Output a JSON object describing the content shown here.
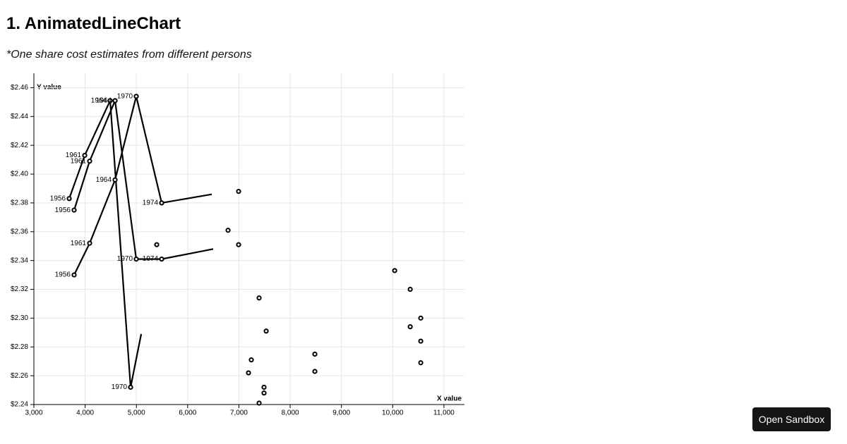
{
  "page": {
    "heading": "1. AnimatedLineChart",
    "note": "*One share cost estimates from different persons",
    "button": "Open Sandbox"
  },
  "chart_data": {
    "type": "line",
    "x_label": "X value",
    "y_label": "Y value",
    "xlim": [
      3000,
      11400
    ],
    "ylim": [
      2.24,
      2.47
    ],
    "xticks": [
      {
        "value": 3000,
        "label": "3,000"
      },
      {
        "value": 4000,
        "label": "4,000"
      },
      {
        "value": 5000,
        "label": "5,000"
      },
      {
        "value": 6000,
        "label": "6,000"
      },
      {
        "value": 7000,
        "label": "7,000"
      },
      {
        "value": 8000,
        "label": "8,000"
      },
      {
        "value": 9000,
        "label": "9,000"
      },
      {
        "value": 10000,
        "label": "10,000"
      },
      {
        "value": 11000,
        "label": "11,000"
      }
    ],
    "yticks": [
      {
        "value": 2.24,
        "label": "$2.24"
      },
      {
        "value": 2.26,
        "label": "$2.26"
      },
      {
        "value": 2.28,
        "label": "$2.28"
      },
      {
        "value": 2.3,
        "label": "$2.30"
      },
      {
        "value": 2.32,
        "label": "$2.32"
      },
      {
        "value": 2.34,
        "label": "$2.34"
      },
      {
        "value": 2.36,
        "label": "$2.36"
      },
      {
        "value": 2.38,
        "label": "$2.38"
      },
      {
        "value": 2.4,
        "label": "$2.40"
      },
      {
        "value": 2.42,
        "label": "$2.42"
      },
      {
        "value": 2.44,
        "label": "$2.44"
      },
      {
        "value": 2.46,
        "label": "$2.46"
      }
    ],
    "grid": true,
    "series": [
      {
        "color": "#000000",
        "line": true,
        "x": [
          3689,
          3992,
          4488,
          4887,
          5094
        ],
        "values": [
          2.383,
          2.413,
          2.451,
          2.252,
          2.289
        ],
        "point_labels": [
          "1956",
          "1961",
          "1964",
          "1970",
          null
        ]
      },
      {
        "color": "#000000",
        "line": true,
        "x": [
          3785,
          4088,
          4584,
          4997,
          5493,
          6499
        ],
        "values": [
          2.375,
          2.409,
          2.451,
          2.341,
          2.341,
          2.348
        ],
        "point_labels": [
          "1956",
          "1961",
          "1964",
          "1970",
          "1974",
          null
        ]
      },
      {
        "color": "#000000",
        "line": true,
        "x": [
          3785,
          4088,
          4584,
          4997,
          5493,
          6471
        ],
        "values": [
          2.33,
          2.352,
          2.396,
          2.454,
          2.38,
          2.386
        ],
        "point_labels": [
          "1956",
          "1961",
          "1964",
          "1970",
          "1974",
          null
        ]
      },
      {
        "color": "#000000",
        "line": false,
        "x": [
          6994,
          6788,
          6994,
          5397,
          7394,
          7532,
          7242,
          7187,
          7490,
          7490,
          7394,
          8482,
          8482,
          10039,
          10342,
          10548,
          10342,
          10548,
          10548
        ],
        "values": [
          2.388,
          2.361,
          2.351,
          2.351,
          2.314,
          2.291,
          2.271,
          2.262,
          2.252,
          2.248,
          2.241,
          2.275,
          2.263,
          2.333,
          2.32,
          2.3,
          2.294,
          2.284,
          2.269
        ]
      }
    ]
  }
}
